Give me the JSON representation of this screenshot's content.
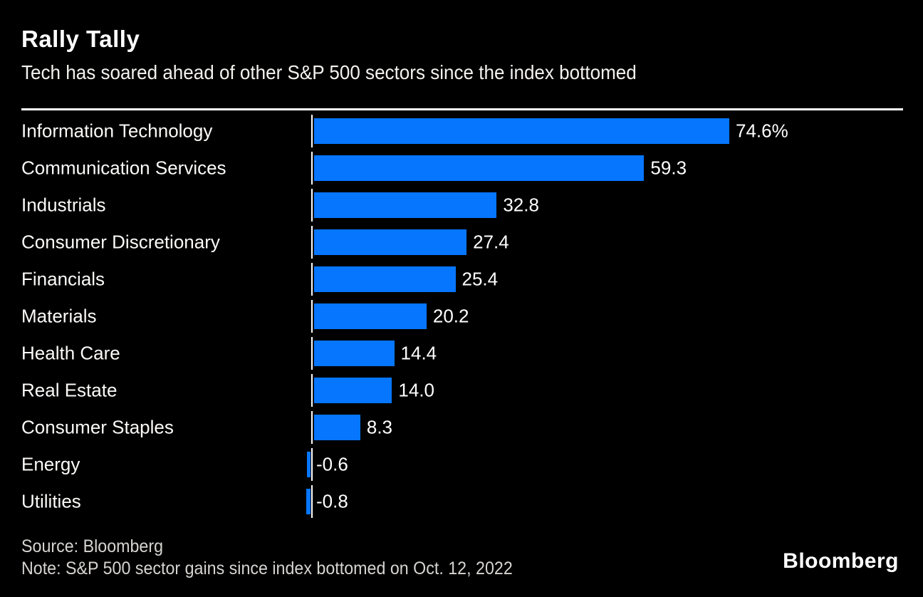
{
  "title": "Rally Tally",
  "subtitle": "Tech has soared ahead of other S&P 500 sectors since the index bottomed",
  "footer": {
    "source": "Source: Bloomberg",
    "note": "Note: S&P 500 sector gains since index bottomed on Oct. 12, 2022",
    "logo": "Bloomberg"
  },
  "colors": {
    "background": "#000000",
    "bar": "#0676ff",
    "text": "#ffffff",
    "footnote_text": "#d6d4d1",
    "axis_line": "#ffffff"
  },
  "chart_data": {
    "type": "bar",
    "orientation": "horizontal",
    "title": "Rally Tally",
    "subtitle": "Tech has soared ahead of other S&P 500 sectors since the index bottomed",
    "xlabel": "",
    "ylabel": "",
    "xlim": [
      -2,
      78
    ],
    "grid": false,
    "legend": false,
    "unit": "%",
    "categories": [
      "Information Technology",
      "Communication Services",
      "Industrials",
      "Consumer Discretionary",
      "Financials",
      "Materials",
      "Health Care",
      "Real Estate",
      "Consumer Staples",
      "Energy",
      "Utilities"
    ],
    "values": [
      74.6,
      59.3,
      32.8,
      27.4,
      25.4,
      20.2,
      14.4,
      14.0,
      8.3,
      -0.6,
      -0.8
    ],
    "value_labels": [
      "74.6%",
      "59.3",
      "32.8",
      "27.4",
      "25.4",
      "20.2",
      "14.4",
      "14.0",
      "8.3",
      "-0.6",
      "-0.8"
    ]
  }
}
